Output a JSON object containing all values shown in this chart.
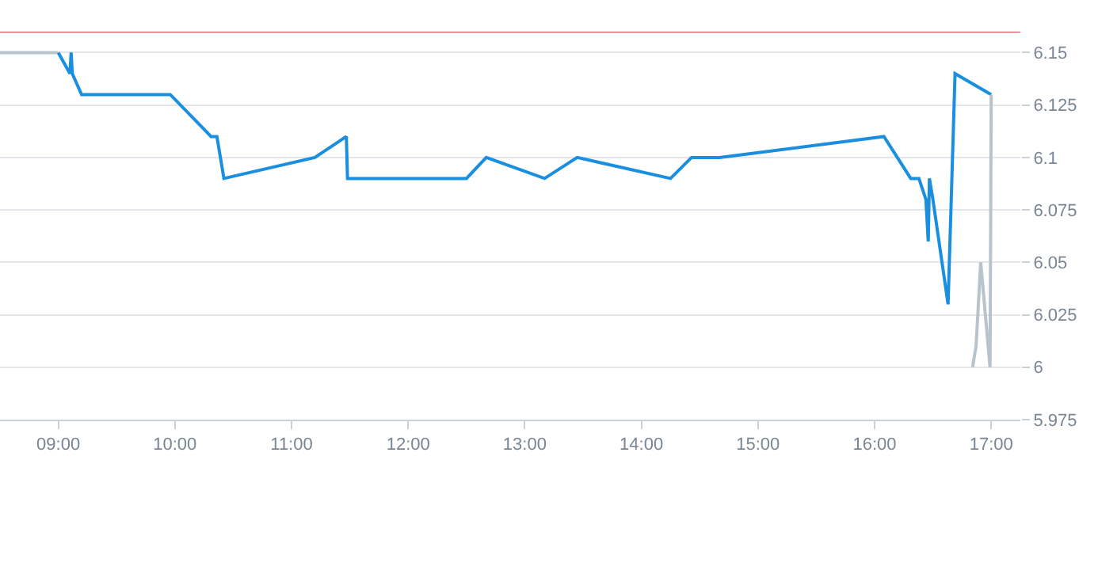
{
  "chart_data": {
    "type": "line",
    "x": [
      8.5,
      9.0,
      9.1,
      9.11,
      9.12,
      9.2,
      9.96,
      10.31,
      10.36,
      10.42,
      11.2,
      11.47,
      11.48,
      12.5,
      12.67,
      13.17,
      13.45,
      14.25,
      14.43,
      14.67,
      16.08,
      16.31,
      16.38,
      16.44,
      16.46,
      16.47,
      16.5,
      16.63,
      16.69,
      17.0
    ],
    "series": [
      {
        "color": "#b8c4cc",
        "values": [
          6.15,
          6.15,
          null,
          null,
          null,
          null,
          null,
          null,
          null,
          null,
          null,
          null,
          null,
          null,
          null,
          null,
          null,
          null,
          null,
          null,
          null,
          null,
          null,
          null,
          null,
          null,
          null,
          null,
          null,
          null
        ]
      },
      {
        "color": "#1a8fe0",
        "values": [
          null,
          6.15,
          6.14,
          6.15,
          6.14,
          6.13,
          6.13,
          6.11,
          6.11,
          6.09,
          6.1,
          6.11,
          6.09,
          6.09,
          6.1,
          6.09,
          6.1,
          6.09,
          6.1,
          6.1,
          6.11,
          6.09,
          6.09,
          6.08,
          6.06,
          6.09,
          6.08,
          6.03,
          6.14,
          6.13
        ]
      },
      {
        "color": "#b8c4cc",
        "x": [
          16.84,
          16.87,
          16.91,
          16.99,
          17.0
        ],
        "values": [
          6.0,
          6.01,
          6.05,
          6.0,
          6.13
        ]
      }
    ],
    "xlim": [
      8.5,
      17.25
    ],
    "xticks": [
      {
        "value": 9,
        "label": "09:00"
      },
      {
        "value": 10,
        "label": "10:00"
      },
      {
        "value": 11,
        "label": "11:00"
      },
      {
        "value": 12,
        "label": "12:00"
      },
      {
        "value": 13,
        "label": "13:00"
      },
      {
        "value": 14,
        "label": "14:00"
      },
      {
        "value": 15,
        "label": "15:00"
      },
      {
        "value": 16,
        "label": "16:00"
      },
      {
        "value": 17,
        "label": "17:00"
      }
    ],
    "ylim": [
      5.975,
      6.16
    ],
    "yticks": [
      5.975,
      6,
      6.025,
      6.05,
      6.075,
      6.1,
      6.125,
      6.15
    ],
    "ref_lines": [
      {
        "axis": "y",
        "value": 6.16,
        "color": "#d9453b"
      }
    ],
    "grid": "y",
    "marker": "none",
    "line_style": "solid"
  }
}
